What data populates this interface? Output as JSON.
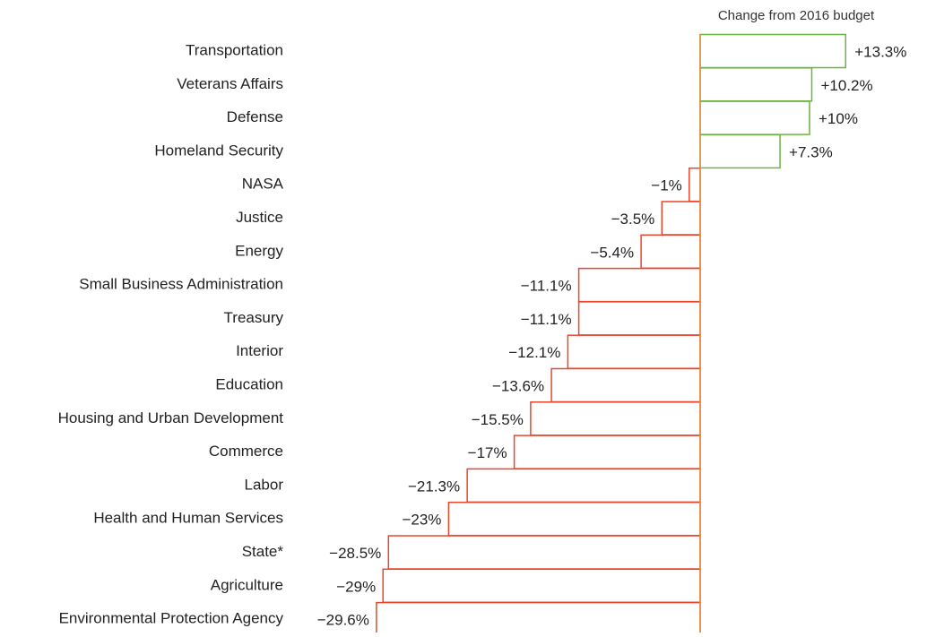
{
  "chart_data": {
    "type": "bar",
    "orientation": "horizontal",
    "title": "Change from 2016 budget",
    "categories": [
      "Transportation",
      "Veterans Affairs",
      "Defense",
      "Homeland Security",
      "NASA",
      "Justice",
      "Energy",
      "Small Business Administration",
      "Treasury",
      "Interior",
      "Education",
      "Housing and Urban Development",
      "Commerce",
      "Labor",
      "Health and Human Services",
      "State*",
      "Agriculture",
      "Environmental Protection Agency"
    ],
    "values": [
      13.3,
      10.2,
      10,
      7.3,
      -1,
      -3.5,
      -5.4,
      -11.1,
      -11.1,
      -12.1,
      -13.6,
      -15.5,
      -17,
      -21.3,
      -23,
      -28.5,
      -29,
      -29.6
    ],
    "value_labels": [
      "+13.3%",
      "+10.2%",
      "+10%",
      "+7.3%",
      "−1%",
      "−3.5%",
      "−5.4%",
      "−11.1%",
      "−11.1%",
      "−12.1%",
      "−13.6%",
      "−15.5%",
      "−17%",
      "−21.3%",
      "−23%",
      "−28.5%",
      "−29%",
      "−29.6%"
    ],
    "positive_color": "#6cb33f",
    "negative_color": "#e9472d"
  }
}
